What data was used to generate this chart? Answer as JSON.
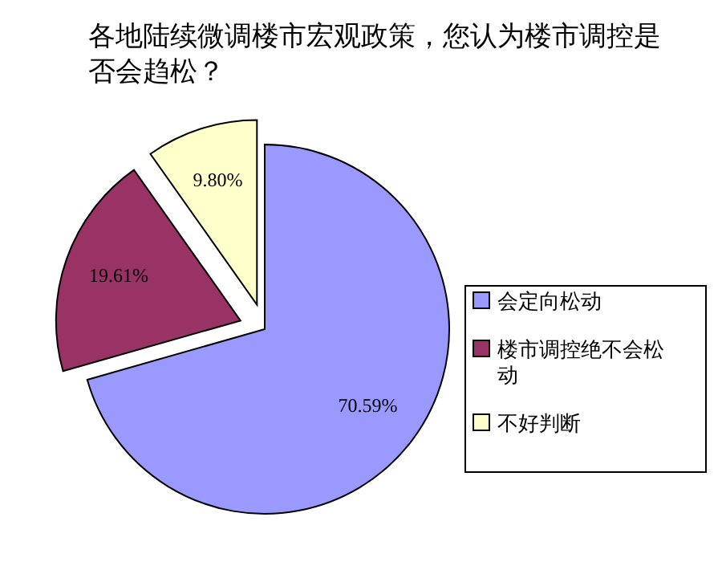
{
  "chart_data": {
    "type": "pie",
    "title": "各地陆续微调楼市宏观政策，您认为楼市调控是否会趋松？",
    "categories": [
      "会定向松动",
      "楼市调控绝不会松动",
      "不好判断"
    ],
    "values": [
      70.59,
      19.61,
      9.8
    ],
    "value_labels": [
      "70.59%",
      "19.61%",
      "9.80%"
    ],
    "colors": [
      "#9999ff",
      "#993366",
      "#ffffcc"
    ],
    "legend": "right"
  }
}
